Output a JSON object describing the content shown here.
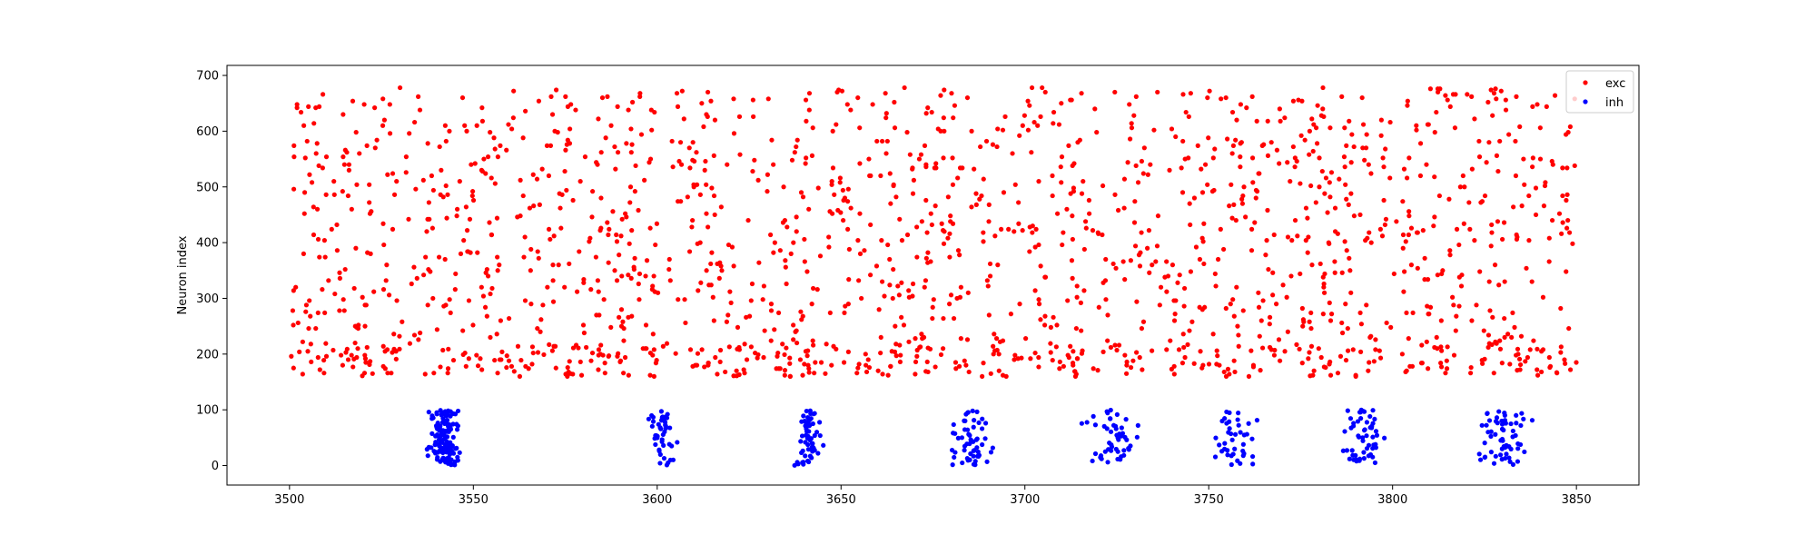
{
  "chart_data": {
    "type": "scatter",
    "title": "",
    "xlabel": "",
    "ylabel": "Neuron index",
    "xlim": [
      3483,
      3867
    ],
    "ylim": [
      -35,
      718
    ],
    "xticks": [
      3500,
      3550,
      3600,
      3650,
      3700,
      3750,
      3800,
      3850
    ],
    "yticks": [
      0,
      100,
      200,
      300,
      400,
      500,
      600,
      700
    ],
    "grid": false,
    "legend": {
      "placement": "top-right"
    },
    "series": [
      {
        "name": "exc",
        "color": "#ff0000",
        "x_range": [
          3500,
          3850
        ],
        "neuron_range": [
          160,
          680
        ],
        "approx_count": 1750
      },
      {
        "name": "inh",
        "color": "#0000ff",
        "neuron_range": [
          0,
          100
        ],
        "bursts": [
          {
            "center": 3542,
            "halfwidth": 6,
            "count": 140
          },
          {
            "center": 3601,
            "halfwidth": 6,
            "count": 45
          },
          {
            "center": 3641,
            "halfwidth": 5,
            "count": 60
          },
          {
            "center": 3685,
            "halfwidth": 8,
            "count": 55
          },
          {
            "center": 3724,
            "halfwidth": 10,
            "count": 50
          },
          {
            "center": 3757,
            "halfwidth": 10,
            "count": 40
          },
          {
            "center": 3792,
            "halfwidth": 8,
            "count": 55
          },
          {
            "center": 3830,
            "halfwidth": 10,
            "count": 60
          }
        ]
      }
    ]
  }
}
